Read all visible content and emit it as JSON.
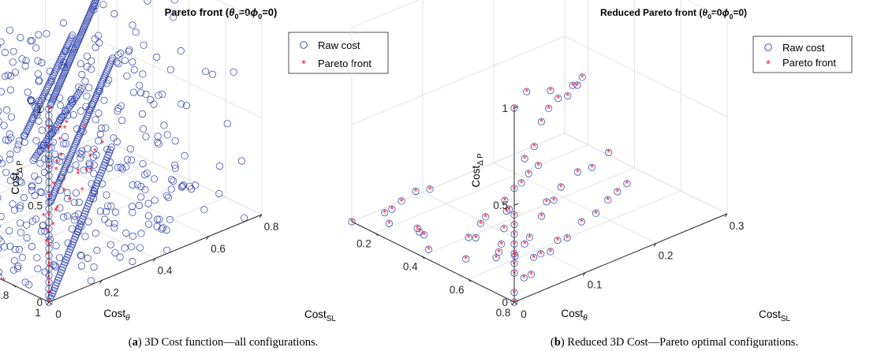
{
  "figure": {
    "captions": [
      {
        "label": "a",
        "text": " 3D Cost function—all configurations."
      },
      {
        "label": "b",
        "text": " Reduced 3D Cost—Pareto optimal configurations."
      }
    ]
  },
  "colors": {
    "raw": "#2b3fa8",
    "pareto": "#e8202e",
    "axis": "#262626",
    "grid": "#dedede"
  },
  "chart_data": [
    {
      "type": "scatter",
      "title": "Pareto front (θ0=0ϕ0=0)",
      "title_parts": {
        "pre": "Pareto front (",
        "theta": "θ",
        "sub0": "0",
        "eq": "=0",
        "phi": "ϕ",
        "sub1": "0",
        "post": "=0)"
      },
      "xlabel": "CostSL",
      "xlabel_parts": {
        "main": "Cost",
        "sub": "SL"
      },
      "ylabel": "Costθ",
      "ylabel_parts": {
        "main": "Cost",
        "sub": "θ"
      },
      "zlabel": "CostΔ P",
      "zlabel_parts": {
        "main": "Cost",
        "sub": "Δ P"
      },
      "xlim": [
        0,
        0.8
      ],
      "ylim": [
        0.1,
        1
      ],
      "zlim": [
        0,
        1
      ],
      "xticks": [
        0,
        0.2,
        0.4,
        0.6,
        0.8
      ],
      "yticks": [
        0.2,
        0.4,
        0.6,
        0.8,
        1
      ],
      "zticks": [
        0,
        0.5,
        1
      ],
      "xtick_labels": [
        "0",
        "0.2",
        "0.4",
        "0.6",
        "0.8"
      ],
      "ytick_labels": [
        "0.2",
        "0.4",
        "0.6",
        "0.8",
        "1"
      ],
      "ztick_labels": [
        "0",
        "0.5",
        "1"
      ],
      "grid": true,
      "legend_position": "top-right",
      "series": [
        {
          "name": "Raw cost",
          "marker": "o",
          "color": "#2b3fa8",
          "lines": [
            {
              "from": [
                0.02,
                0.98,
                1.0
              ],
              "to": [
                0.72,
                0.28,
                1.0
              ],
              "n": 85
            },
            {
              "from": [
                0.02,
                0.98,
                0.5
              ],
              "to": [
                0.75,
                0.25,
                0.5
              ],
              "n": 75
            },
            {
              "from": [
                0.02,
                0.98,
                0.0
              ],
              "to": [
                0.78,
                0.2,
                0.0
              ],
              "n": 60
            },
            {
              "from": [
                0.1,
                0.72,
                0.68
              ],
              "to": [
                0.62,
                0.22,
                0.68
              ],
              "n": 50
            },
            {
              "from": [
                0.2,
                0.62,
                0.45
              ],
              "to": [
                0.6,
                0.3,
                0.45
              ],
              "n": 35
            }
          ],
          "cloud": {
            "x": [
              0.0,
              0.75
            ],
            "y": [
              0.15,
              1.0
            ],
            "z": [
              0.0,
              1.0
            ],
            "n": 520
          },
          "column": {
            "x": 0.0,
            "y": 1.0,
            "z": [
              0.0,
              1.0
            ],
            "n": 30
          }
        },
        {
          "name": "Pareto front",
          "marker": "*",
          "color": "#e8202e",
          "points": [
            [
              0,
              1,
              1
            ],
            [
              0,
              1,
              0.9
            ],
            [
              0,
              1,
              0.8
            ],
            [
              0,
              1,
              0.7
            ],
            [
              0,
              1,
              0.55
            ],
            [
              0,
              1,
              0.45
            ],
            [
              0,
              1,
              0.3
            ],
            [
              0,
              1,
              0.2
            ],
            [
              0,
              1,
              0.1
            ],
            [
              0,
              1,
              0.05
            ],
            [
              0,
              1,
              0
            ],
            [
              0.05,
              0.95,
              0.35
            ],
            [
              0.1,
              0.88,
              0.5
            ],
            [
              0.15,
              0.82,
              0.52
            ],
            [
              0.2,
              0.75,
              0.5
            ],
            [
              0.25,
              0.7,
              0.48
            ],
            [
              0.3,
              0.62,
              0.5
            ],
            [
              0.35,
              0.55,
              0.5
            ],
            [
              0.4,
              0.5,
              0.45
            ],
            [
              0.1,
              0.85,
              0
            ],
            [
              0.15,
              0.78,
              0
            ],
            [
              0.2,
              0.7,
              0
            ],
            [
              0.25,
              0.62,
              0
            ],
            [
              0.3,
              0.55,
              0
            ],
            [
              0.4,
              0.45,
              0
            ],
            [
              0.5,
              0.35,
              0
            ],
            [
              0.6,
              0.28,
              0
            ],
            [
              0.7,
              0.2,
              0
            ],
            [
              0.78,
              0.15,
              0
            ],
            [
              0.5,
              0.45,
              0.05
            ],
            [
              0.55,
              0.4,
              0.1
            ],
            [
              0.6,
              0.35,
              0.05
            ],
            [
              0.65,
              0.3,
              0.1
            ],
            [
              0.45,
              0.5,
              0.2
            ],
            [
              0.35,
              0.6,
              0.15
            ],
            [
              0.25,
              0.68,
              0.2
            ],
            [
              0.15,
              0.75,
              0.25
            ],
            [
              0.2,
              0.9,
              0.75
            ],
            [
              0.1,
              0.95,
              0.85
            ],
            [
              0,
              0.75,
              0
            ],
            [
              0,
              0.7,
              0.05
            ],
            [
              0,
              0.65,
              0
            ],
            [
              0,
              0.5,
              0
            ],
            [
              0,
              0.45,
              0.05
            ],
            [
              0,
              0.4,
              0
            ],
            [
              0,
              0.3,
              0
            ],
            [
              0,
              0.25,
              0
            ],
            [
              0,
              0.2,
              0
            ],
            [
              0,
              0.15,
              0
            ]
          ]
        }
      ]
    },
    {
      "type": "scatter",
      "title": "Reduced Pareto front (θ0=0ϕ0=0)",
      "title_parts": {
        "pre": "Reduced Pareto front (",
        "theta": "θ",
        "sub0": "0",
        "eq": "=0",
        "phi": "ϕ",
        "sub1": "0",
        "post": "=0)"
      },
      "xlabel": "CostSL",
      "xlabel_parts": {
        "main": "Cost",
        "sub": "SL"
      },
      "ylabel": "Costθ",
      "ylabel_parts": {
        "main": "Cost",
        "sub": "θ"
      },
      "zlabel": "CostΔ P",
      "zlabel_parts": {
        "main": "Cost",
        "sub": "Δ P"
      },
      "xlim": [
        0,
        0.3
      ],
      "ylim": [
        0.1,
        0.8
      ],
      "zlim": [
        0,
        1
      ],
      "xticks": [
        0,
        0.1,
        0.2,
        0.3
      ],
      "yticks": [
        0.2,
        0.4,
        0.6,
        0.8
      ],
      "zticks": [
        0,
        0.5,
        1
      ],
      "xtick_labels": [
        "0",
        "0.1",
        "0.2",
        "0.3"
      ],
      "ytick_labels": [
        "0.2",
        "0.4",
        "0.6",
        "0.8"
      ],
      "ztick_labels": [
        "0",
        "0.5",
        "1"
      ],
      "grid": true,
      "legend_position": "top-right",
      "series": [
        {
          "name": "Raw cost",
          "marker": "o",
          "color": "#2b3fa8",
          "same_as_pareto": true
        },
        {
          "name": "Pareto front",
          "marker": "*",
          "color": "#e8202e",
          "points": [
            [
              0,
              0.8,
              1
            ],
            [
              0.05,
              0.7,
              0.95
            ],
            [
              0.1,
              0.65,
              0.85
            ],
            [
              0.28,
              0.45,
              0.95
            ],
            [
              0.29,
              0.44,
              0.96
            ],
            [
              0.12,
              0.55,
              0.6
            ],
            [
              0.14,
              0.52,
              0.62
            ],
            [
              0.16,
              0.5,
              0.63
            ],
            [
              0.18,
              0.48,
              0.6
            ],
            [
              0.2,
              0.44,
              0.6
            ],
            [
              0.21,
              0.43,
              0.58
            ],
            [
              0.22,
              0.42,
              0.6
            ],
            [
              0.08,
              0.6,
              0.5
            ],
            [
              0.1,
              0.58,
              0.52
            ],
            [
              0,
              0.8,
              0.45
            ],
            [
              0,
              0.8,
              0.4
            ],
            [
              0,
              0.8,
              0.35
            ],
            [
              0,
              0.8,
              0.3
            ],
            [
              0,
              0.8,
              0.25
            ],
            [
              0,
              0.8,
              0.2
            ],
            [
              0,
              0.8,
              0.15
            ],
            [
              0,
              0.8,
              0.05
            ],
            [
              0,
              0.8,
              0
            ],
            [
              0.03,
              0.75,
              0.05
            ],
            [
              0.05,
              0.72,
              0.02
            ],
            [
              0.06,
              0.7,
              0.08
            ],
            [
              0.08,
              0.67,
              0.05
            ],
            [
              0.1,
              0.65,
              0.02
            ],
            [
              0.12,
              0.62,
              0.03
            ],
            [
              0.14,
              0.6,
              0
            ],
            [
              0.17,
              0.57,
              0.02
            ],
            [
              0.2,
              0.54,
              0
            ],
            [
              0.23,
              0.5,
              0
            ],
            [
              0.25,
              0.48,
              0
            ],
            [
              0.27,
              0.46,
              0
            ],
            [
              0.04,
              0.6,
              0.05
            ],
            [
              0.06,
              0.55,
              0.02
            ],
            [
              0.08,
              0.5,
              0
            ],
            [
              0.1,
              0.45,
              0.02
            ],
            [
              0.12,
              0.4,
              0.05
            ],
            [
              0.14,
              0.35,
              0
            ],
            [
              0.15,
              0.3,
              0
            ],
            [
              0.17,
              0.28,
              0.02
            ],
            [
              0.19,
              0.25,
              0
            ],
            [
              0.21,
              0.22,
              0
            ],
            [
              0.23,
              0.2,
              0
            ],
            [
              0.03,
              0.5,
              0
            ],
            [
              0.05,
              0.45,
              0.05
            ],
            [
              0.07,
              0.42,
              0
            ],
            [
              0.09,
              0.38,
              0.02
            ],
            [
              0.11,
              0.34,
              0
            ],
            [
              0.01,
              0.4,
              0.02
            ],
            [
              0.02,
              0.35,
              0.05
            ],
            [
              0.03,
              0.3,
              0.02
            ],
            [
              0.04,
              0.26,
              0
            ],
            [
              0.02,
              0.2,
              0.02
            ],
            [
              0.03,
              0.15,
              0.03
            ],
            [
              0.05,
              0.12,
              0
            ],
            [
              0.07,
              0.1,
              0
            ],
            [
              0.09,
              0.1,
              0.02
            ],
            [
              0.11,
              0.1,
              0
            ],
            [
              0,
              0.1,
              0
            ],
            [
              0.06,
              0.62,
              0.04
            ],
            [
              0.08,
              0.6,
              0.06
            ],
            [
              0.1,
              0.56,
              0.04
            ],
            [
              0.13,
              0.52,
              0.08
            ],
            [
              0.15,
              0.48,
              0.1
            ],
            [
              0.17,
              0.45,
              0.06
            ],
            [
              0.19,
              0.42,
              0.08
            ],
            [
              0.22,
              0.4,
              0.1
            ],
            [
              0.25,
              0.37,
              0.06
            ],
            [
              0.28,
              0.35,
              0.08
            ]
          ]
        }
      ]
    }
  ]
}
